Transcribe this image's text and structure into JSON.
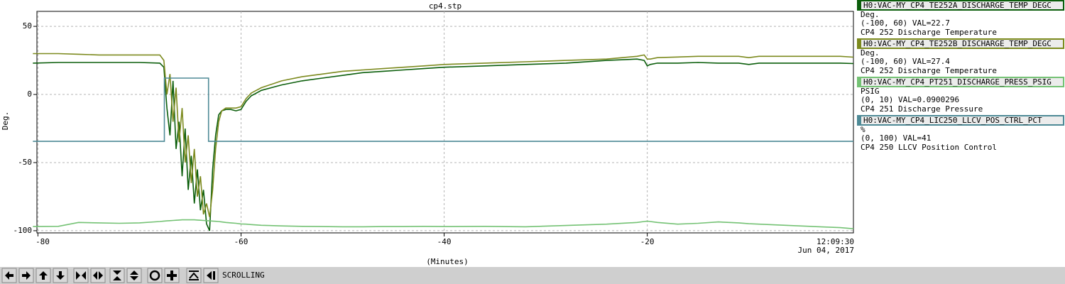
{
  "chart_data": {
    "type": "line",
    "title": "cp4.stp",
    "ylabel": "Deg.",
    "xlabel": "(Minutes)",
    "time_label": "12:09:30",
    "date_label": "Jun 04, 2017",
    "xlim": [
      -80.1,
      0.3
    ],
    "xticks": [
      -80,
      -60,
      -40,
      -20
    ],
    "ylim": [
      -101.6,
      61
    ],
    "yticks": [
      -100,
      -50,
      0,
      50
    ],
    "grid": true,
    "x": [
      -80.5,
      -78,
      -76,
      -74,
      -72,
      -70,
      -68,
      -67.6,
      -67.3,
      -67,
      -66.7,
      -66.4,
      -66.1,
      -65.8,
      -65.5,
      -65.2,
      -64.9,
      -64.6,
      -64.3,
      -64,
      -63.7,
      -63.4,
      -63.1,
      -62.8,
      -62.5,
      -62.2,
      -61.9,
      -61.5,
      -61,
      -60.5,
      -60,
      -59.5,
      -59,
      -58,
      -56,
      -54,
      -52,
      -50,
      -48,
      -46,
      -44,
      -42,
      -40,
      -36,
      -32,
      -28,
      -24,
      -21,
      -20.3,
      -20,
      -19.7,
      -19,
      -17,
      -15,
      -13,
      -11,
      -10,
      -9,
      -7,
      -5,
      -3,
      -1,
      0.3
    ],
    "series": [
      {
        "name": "H0:VAC-MY_CP4_TE252A_DISCHARGE_TEMP_DEGC",
        "color": "#0b5e0b",
        "units": "Deg.",
        "info": "(-100, 60) VAL=22.7",
        "description": "CP4 252 Discharge Temperature",
        "range": [
          -100,
          60
        ],
        "values": [
          23,
          23.5,
          23.5,
          23.5,
          23.5,
          23.5,
          23,
          20,
          -10,
          -30,
          10,
          -40,
          -20,
          -60,
          -25,
          -70,
          -45,
          -80,
          -55,
          -85,
          -70,
          -95,
          -100,
          -55,
          -30,
          -15,
          -12,
          -11,
          -11,
          -12,
          -11,
          -5,
          -1,
          3,
          7,
          10,
          12,
          14,
          16,
          17,
          18,
          19,
          20,
          21,
          22,
          23,
          25,
          26,
          25,
          21,
          22,
          23,
          23,
          23.5,
          23,
          23,
          22,
          23,
          23,
          23,
          23,
          23,
          22.7
        ]
      },
      {
        "name": "H0:VAC-MY_CP4_TE252B_DISCHARGE_TEMP_DEGC",
        "color": "#7c8a1e",
        "units": "Deg.",
        "info": "(-100, 60) VAL=27.4",
        "description": "CP4 252 Discharge Temperature",
        "range": [
          -100,
          60
        ],
        "values": [
          30,
          30,
          29.5,
          29,
          29,
          29,
          29,
          25,
          0,
          15,
          -20,
          5,
          -35,
          -10,
          -50,
          -30,
          -65,
          -40,
          -75,
          -60,
          -88,
          -80,
          -90,
          -70,
          -40,
          -20,
          -12,
          -10,
          -10,
          -10,
          -9,
          -3,
          1,
          5,
          10,
          13,
          15,
          17,
          18,
          19,
          20,
          21,
          22,
          23,
          24,
          25,
          26,
          28,
          29,
          26,
          26,
          27,
          27.5,
          28,
          28,
          28,
          27,
          28,
          28,
          28,
          28,
          28,
          27.4
        ]
      },
      {
        "name": "H0:VAC-MY_CP4_PT251_DISCHARGE_PRESS_PSIG",
        "color": "#74c274",
        "units": "PSIG",
        "info": "(0, 10) VAL=0.0900296",
        "description": "CP4 251 Discharge Pressure",
        "range": [
          0,
          10
        ],
        "values": [
          0.19,
          0.2,
          0.38,
          0.36,
          0.34,
          0.36,
          0.42,
          0.44,
          0.45,
          0.46,
          0.47,
          0.48,
          0.49,
          0.5,
          0.5,
          0.5,
          0.5,
          0.5,
          0.49,
          0.48,
          0.47,
          0.46,
          0.45,
          0.44,
          0.43,
          0.42,
          0.4,
          0.38,
          0.36,
          0.34,
          0.31,
          0.3,
          0.28,
          0.25,
          0.22,
          0.2,
          0.19,
          0.18,
          0.18,
          0.19,
          0.19,
          0.2,
          0.19,
          0.2,
          0.18,
          0.24,
          0.3,
          0.38,
          0.42,
          0.44,
          0.42,
          0.38,
          0.3,
          0.34,
          0.4,
          0.36,
          0.32,
          0.3,
          0.26,
          0.22,
          0.18,
          0.14,
          0.09
        ]
      },
      {
        "name": "H0:VAC-MY_CP4_LIC250_LLCV_POS_CTRL_PCT",
        "color": "#4e8a96",
        "units": "%",
        "info": "(0, 100) VAL=41",
        "description": "CP4 250 LLCV Position Control",
        "range": [
          0,
          100
        ],
        "x": [
          -80.5,
          -67.55,
          -67.55,
          -63.2,
          -63.2,
          0.3
        ],
        "values": [
          41,
          41,
          70,
          70,
          41,
          41
        ]
      }
    ]
  },
  "toolbar": {
    "status": "SCROLLING"
  }
}
